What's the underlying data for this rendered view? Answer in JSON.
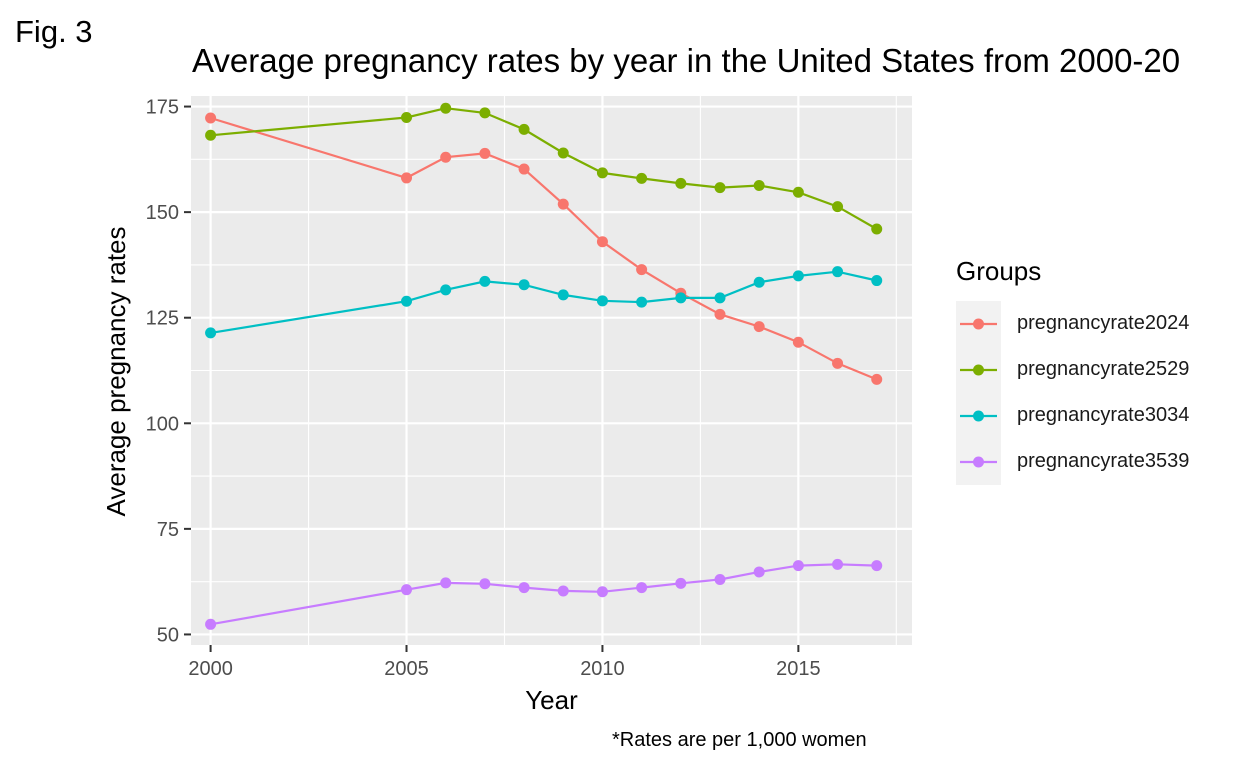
{
  "figure_label": "Fig. 3",
  "footnote": "*Rates are per 1,000 women",
  "legend_title": "Groups",
  "chart_data": {
    "type": "line",
    "title": "Average pregnancy rates by year in the United States from 2000-20",
    "xlabel": "Year",
    "ylabel": "Average pregnancy rates",
    "xlim": [
      1999.5,
      2017.9
    ],
    "ylim": [
      47.5,
      177.5
    ],
    "xticks": [
      2000,
      2005,
      2010,
      2015
    ],
    "yticks": [
      50,
      75,
      100,
      125,
      150,
      175
    ],
    "grid": true,
    "legend_position": "right",
    "x": [
      2000,
      2005,
      2006,
      2007,
      2008,
      2009,
      2010,
      2011,
      2012,
      2013,
      2014,
      2015,
      2016,
      2017
    ],
    "series": [
      {
        "name": "pregnancyrate2024",
        "color": "#F8766D",
        "values": [
          172.3,
          158.1,
          163.0,
          163.9,
          160.2,
          151.9,
          143.0,
          136.4,
          130.8,
          125.8,
          122.9,
          119.2,
          114.2,
          110.4
        ]
      },
      {
        "name": "pregnancyrate2529",
        "color": "#7CAE00",
        "values": [
          168.2,
          172.4,
          174.6,
          173.5,
          169.6,
          164.0,
          159.3,
          158.0,
          156.8,
          155.8,
          156.3,
          154.7,
          151.3,
          146.0
        ]
      },
      {
        "name": "pregnancyrate3034",
        "color": "#00BFC4",
        "values": [
          121.4,
          128.9,
          131.6,
          133.6,
          132.8,
          130.4,
          129.0,
          128.7,
          129.7,
          129.7,
          133.4,
          134.9,
          135.9,
          133.8
        ]
      },
      {
        "name": "pregnancyrate3539",
        "color": "#C77CFF",
        "values": [
          52.4,
          60.6,
          62.2,
          62.0,
          61.1,
          60.3,
          60.1,
          61.1,
          62.1,
          63.0,
          64.8,
          66.3,
          66.6,
          66.3
        ]
      }
    ]
  }
}
